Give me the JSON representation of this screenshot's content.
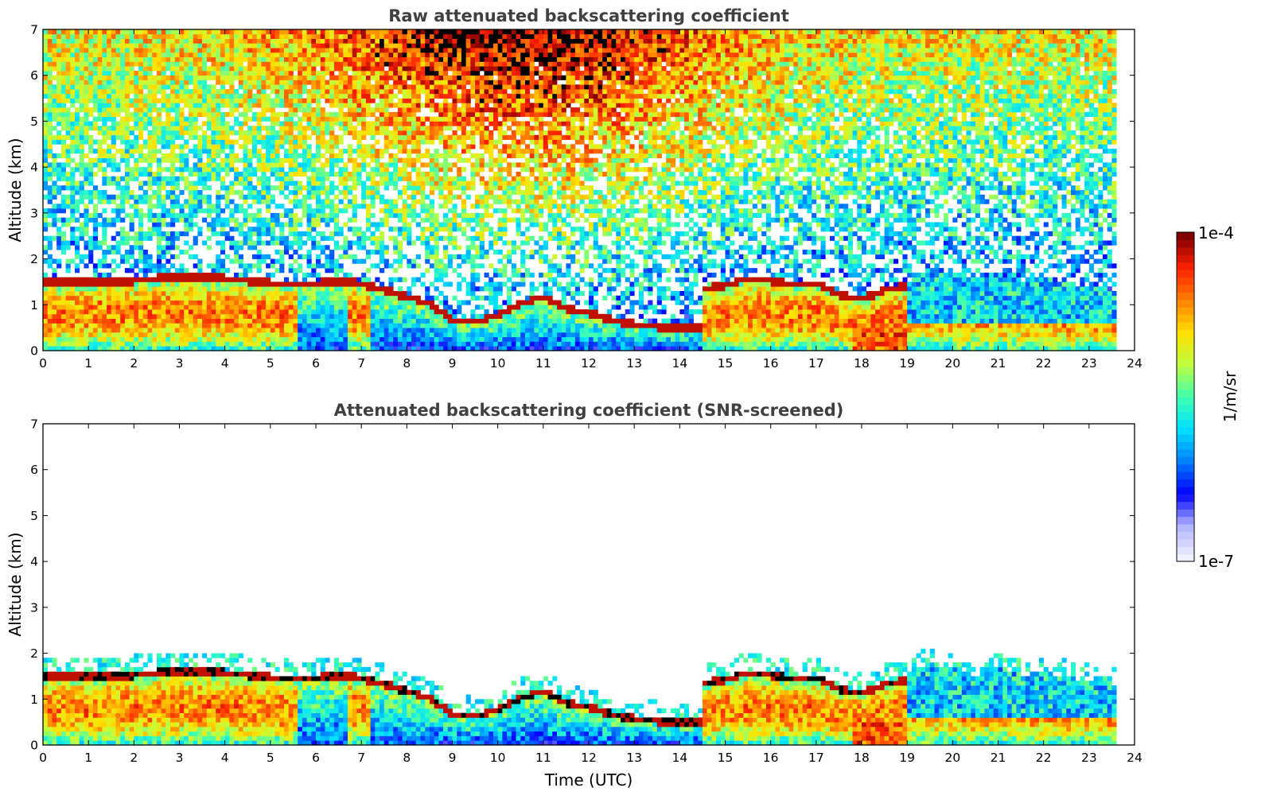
{
  "chart_data": [
    {
      "type": "heatmap",
      "title": "Raw attenuated backscattering coefficient",
      "xlabel": "",
      "ylabel": "Altitude (km)",
      "xlim": [
        0,
        24
      ],
      "ylim": [
        0,
        7
      ],
      "xticks": [
        "0",
        "1",
        "2",
        "3",
        "4",
        "5",
        "6",
        "7",
        "8",
        "9",
        "10",
        "11",
        "12",
        "13",
        "14",
        "15",
        "16",
        "17",
        "18",
        "19",
        "20",
        "21",
        "22",
        "23",
        "24"
      ],
      "yticks": [
        "0",
        "1",
        "2",
        "3",
        "4",
        "5",
        "6",
        "7"
      ],
      "data_end_hour": 23.6,
      "screened": false,
      "layer_top_km": [
        [
          0,
          1.55
        ],
        [
          1,
          1.6
        ],
        [
          2,
          1.6
        ],
        [
          3,
          1.7
        ],
        [
          4,
          1.65
        ],
        [
          5,
          1.55
        ],
        [
          5.6,
          1.5
        ],
        [
          6.7,
          1.6
        ],
        [
          7.5,
          1.4
        ],
        [
          8.5,
          1.1
        ],
        [
          9,
          0.75
        ],
        [
          9.5,
          0.7
        ],
        [
          10,
          0.85
        ],
        [
          10.5,
          1.1
        ],
        [
          11,
          1.25
        ],
        [
          11.5,
          1.0
        ],
        [
          12,
          0.9
        ],
        [
          12.5,
          0.75
        ],
        [
          13,
          0.65
        ],
        [
          13.5,
          0.6
        ],
        [
          14,
          0.55
        ],
        [
          14.45,
          0.55
        ],
        [
          14.5,
          1.4
        ],
        [
          15,
          1.5
        ],
        [
          15.5,
          1.65
        ],
        [
          16,
          1.6
        ],
        [
          16.5,
          1.5
        ],
        [
          17,
          1.55
        ],
        [
          17.5,
          1.3
        ],
        [
          18,
          1.2
        ],
        [
          18.5,
          1.4
        ],
        [
          19,
          1.5
        ],
        [
          19.5,
          1.8
        ],
        [
          20,
          1.7
        ],
        [
          20.5,
          1.5
        ],
        [
          21,
          1.7
        ],
        [
          21.5,
          1.5
        ],
        [
          22,
          1.6
        ],
        [
          22.5,
          1.5
        ],
        [
          23,
          1.4
        ],
        [
          23.6,
          1.3
        ]
      ]
    },
    {
      "type": "heatmap",
      "title": "Attenuated backscattering coefficient (SNR-screened)",
      "xlabel": "Time (UTC)",
      "ylabel": "Altitude (km)",
      "xlim": [
        0,
        24
      ],
      "ylim": [
        0,
        7
      ],
      "xticks": [
        "0",
        "1",
        "2",
        "3",
        "4",
        "5",
        "6",
        "7",
        "8",
        "9",
        "10",
        "11",
        "12",
        "13",
        "14",
        "15",
        "16",
        "17",
        "18",
        "19",
        "20",
        "21",
        "22",
        "23",
        "24"
      ],
      "yticks": [
        "0",
        "1",
        "2",
        "3",
        "4",
        "5",
        "6",
        "7"
      ],
      "data_end_hour": 23.6,
      "screened": true,
      "layer_top_km": [
        [
          0,
          1.55
        ],
        [
          1,
          1.6
        ],
        [
          2,
          1.6
        ],
        [
          3,
          1.7
        ],
        [
          4,
          1.65
        ],
        [
          5,
          1.55
        ],
        [
          5.6,
          1.5
        ],
        [
          6.7,
          1.6
        ],
        [
          7.5,
          1.4
        ],
        [
          8.5,
          1.1
        ],
        [
          9,
          0.75
        ],
        [
          9.5,
          0.7
        ],
        [
          10,
          0.85
        ],
        [
          10.5,
          1.1
        ],
        [
          11,
          1.25
        ],
        [
          11.5,
          1.0
        ],
        [
          12,
          0.9
        ],
        [
          12.5,
          0.75
        ],
        [
          13,
          0.65
        ],
        [
          13.5,
          0.6
        ],
        [
          14,
          0.55
        ],
        [
          14.45,
          0.55
        ],
        [
          14.5,
          1.4
        ],
        [
          15,
          1.5
        ],
        [
          15.5,
          1.65
        ],
        [
          16,
          1.6
        ],
        [
          16.5,
          1.5
        ],
        [
          17,
          1.55
        ],
        [
          17.5,
          1.3
        ],
        [
          18,
          1.2
        ],
        [
          18.5,
          1.4
        ],
        [
          19,
          1.5
        ],
        [
          19.5,
          1.8
        ],
        [
          20,
          1.7
        ],
        [
          20.5,
          1.5
        ],
        [
          21,
          1.7
        ],
        [
          21.5,
          1.5
        ],
        [
          22,
          1.6
        ],
        [
          22.5,
          1.5
        ],
        [
          23,
          1.4
        ],
        [
          23.6,
          1.3
        ]
      ]
    }
  ],
  "colorbar": {
    "label": "1/m/sr",
    "max_label": "1e-4",
    "min_label": "1e-7",
    "colormap": "jet",
    "colors": [
      "#f0f0ff",
      "#b0b4ff",
      "#0000ff",
      "#0080ff",
      "#00e0ff",
      "#40ffb0",
      "#c0ff40",
      "#ffe000",
      "#ff8000",
      "#ff2000",
      "#800000"
    ]
  }
}
